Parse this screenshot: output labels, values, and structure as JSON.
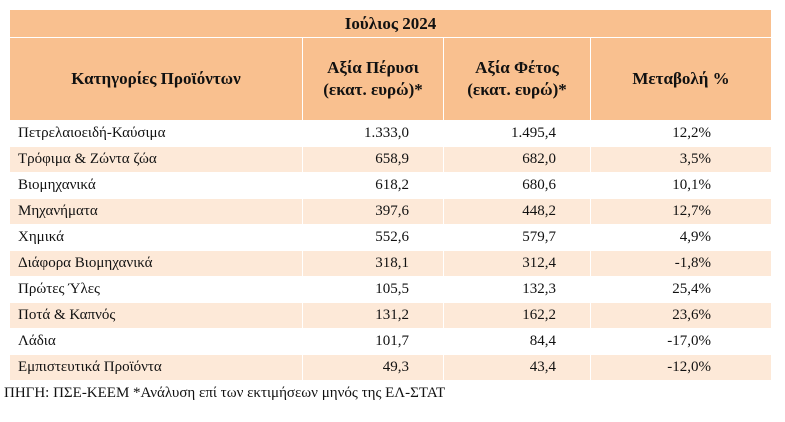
{
  "title": "Ιούλιος 2024",
  "table": {
    "header": [
      "Κατηγορίες Προϊόντων",
      "Αξία Πέρυσι (εκατ. ευρώ)*",
      "Αξία Φέτος (εκατ. ευρώ)*",
      "Μεταβολή %"
    ],
    "rows": [
      [
        "Πετρελαιοειδή-Καύσιμα",
        "1.333,0",
        "1.495,4",
        "12,2%"
      ],
      [
        "Τρόφιμα & Ζώντα ζώα",
        "658,9",
        "682,0",
        "3,5%"
      ],
      [
        "Βιομηχανικά",
        "618,2",
        "680,6",
        "10,1%"
      ],
      [
        "Μηχανήματα",
        "397,6",
        "448,2",
        "12,7%"
      ],
      [
        "Χημικά",
        "552,6",
        "579,7",
        "4,9%"
      ],
      [
        "Διάφορα Βιομηχανικά",
        "318,1",
        "312,4",
        "-1,8%"
      ],
      [
        "Πρώτες Ύλες",
        "105,5",
        "132,3",
        "25,4%"
      ],
      [
        "Ποτά & Καπνός",
        "131,2",
        "162,2",
        "23,6%"
      ],
      [
        "Λάδια",
        "101,7",
        "84,4",
        "-17,0%"
      ],
      [
        "Εμπιστευτικά Προϊόντα",
        "49,3",
        "43,4",
        "-12,0%"
      ]
    ]
  },
  "footer": "ΠΗΓΗ: ΠΣΕ-ΚΕΕΜ *Ανάλυση επί των εκτιμήσεων μηνός της ΕΛ-ΣΤΑΤ"
}
